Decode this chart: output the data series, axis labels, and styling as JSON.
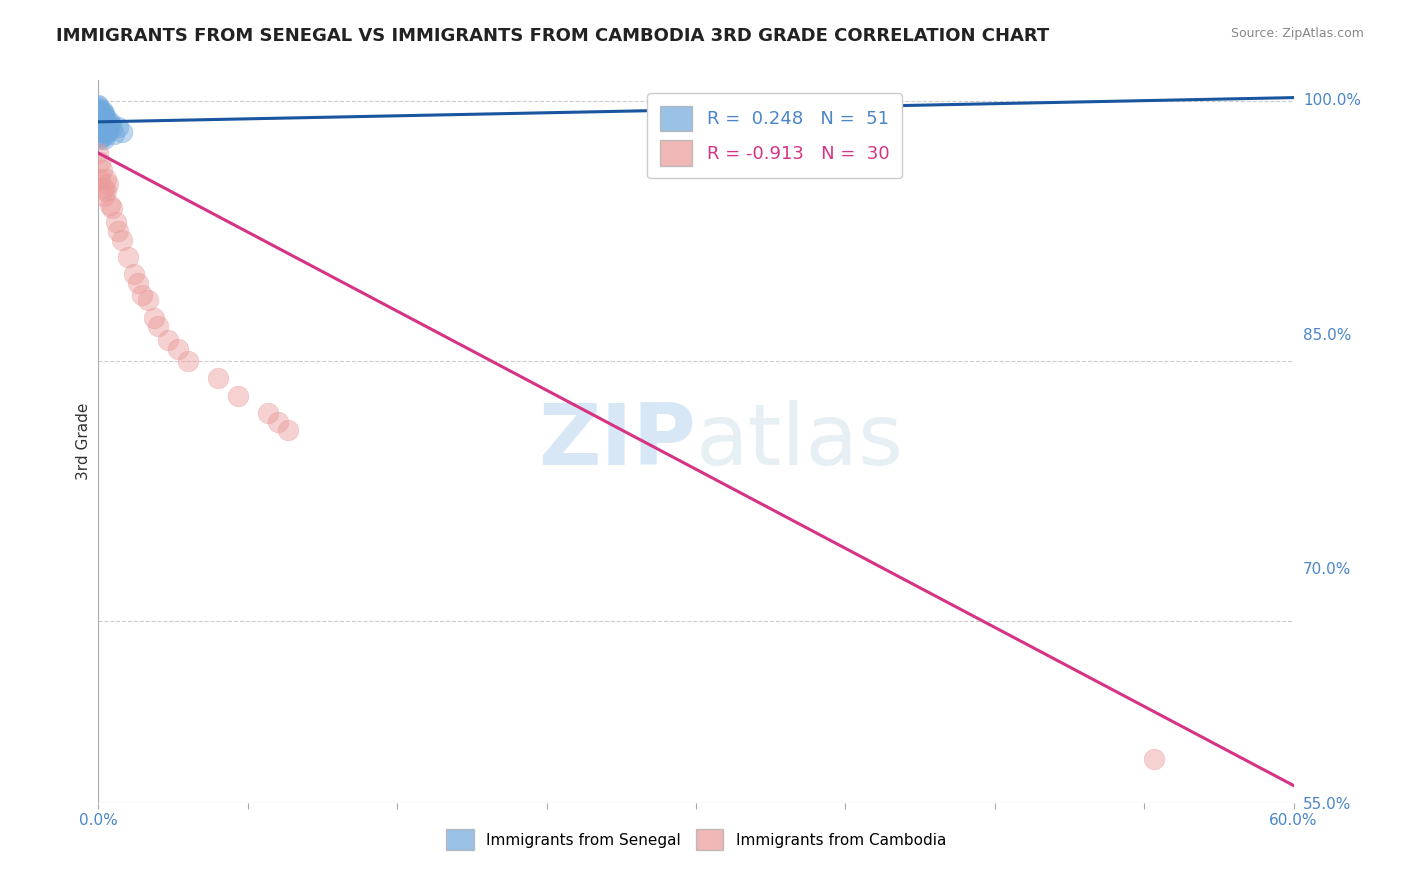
{
  "title": "IMMIGRANTS FROM SENEGAL VS IMMIGRANTS FROM CAMBODIA 3RD GRADE CORRELATION CHART",
  "source": "Source: ZipAtlas.com",
  "ylabel": "3rd Grade",
  "xlim": [
    0.0,
    0.6
  ],
  "ylim": [
    0.595,
    1.012
  ],
  "yticks_right": [
    1.0,
    0.85,
    0.7,
    0.55
  ],
  "ytick_labels_right": [
    "100.0%",
    "85.0%",
    "70.0%",
    "55.0%"
  ],
  "xticks": [
    0.0,
    0.075,
    0.15,
    0.225,
    0.3,
    0.375,
    0.45,
    0.525,
    0.6
  ],
  "xtick_labels": [
    "0.0%",
    "",
    "",
    "",
    "",
    "",
    "",
    "",
    "60.0%"
  ],
  "blue_R": 0.248,
  "blue_N": 51,
  "pink_R": -0.913,
  "pink_N": 30,
  "blue_color": "#6fa8dc",
  "pink_color": "#ea9999",
  "blue_line_color": "#1a56a0",
  "pink_line_color": "#d63384",
  "watermark_zip": "ZIP",
  "watermark_atlas": "atlas",
  "background_color": "#ffffff",
  "grid_color": "#cccccc",
  "title_color": "#222222",
  "blue_scatter_x": [
    0.0,
    0.001,
    0.001,
    0.001,
    0.002,
    0.002,
    0.002,
    0.003,
    0.003,
    0.003,
    0.0,
    0.001,
    0.001,
    0.001,
    0.002,
    0.002,
    0.003,
    0.003,
    0.004,
    0.004,
    0.0,
    0.001,
    0.001,
    0.002,
    0.002,
    0.003,
    0.004,
    0.005,
    0.006,
    0.0,
    0.001,
    0.001,
    0.002,
    0.002,
    0.003,
    0.003,
    0.004,
    0.005,
    0.006,
    0.007,
    0.0,
    0.001,
    0.001,
    0.002,
    0.002,
    0.003,
    0.003,
    0.004,
    0.008,
    0.01,
    0.012
  ],
  "blue_scatter_y": [
    0.99,
    0.992,
    0.985,
    0.978,
    0.995,
    0.988,
    0.98,
    0.992,
    0.985,
    0.978,
    0.998,
    0.993,
    0.986,
    0.979,
    0.99,
    0.983,
    0.993,
    0.986,
    0.99,
    0.983,
    0.995,
    0.992,
    0.984,
    0.991,
    0.984,
    0.988,
    0.985,
    0.982,
    0.987,
    0.997,
    0.994,
    0.987,
    0.992,
    0.985,
    0.989,
    0.982,
    0.986,
    0.983,
    0.988,
    0.985,
    0.996,
    0.993,
    0.986,
    0.99,
    0.983,
    0.987,
    0.98,
    0.984,
    0.981,
    0.985,
    0.982
  ],
  "pink_scatter_x": [
    0.0,
    0.001,
    0.001,
    0.002,
    0.003,
    0.003,
    0.004,
    0.004,
    0.005,
    0.006,
    0.007,
    0.009,
    0.01,
    0.012,
    0.015,
    0.018,
    0.02,
    0.022,
    0.025,
    0.028,
    0.03,
    0.035,
    0.04,
    0.045,
    0.06,
    0.07,
    0.085,
    0.09,
    0.095,
    0.53
  ],
  "pink_scatter_y": [
    0.97,
    0.965,
    0.955,
    0.96,
    0.95,
    0.945,
    0.955,
    0.948,
    0.952,
    0.94,
    0.938,
    0.93,
    0.925,
    0.92,
    0.91,
    0.9,
    0.895,
    0.888,
    0.885,
    0.875,
    0.87,
    0.862,
    0.857,
    0.85,
    0.84,
    0.83,
    0.82,
    0.815,
    0.81,
    0.62
  ],
  "blue_line_x": [
    0.0,
    0.6
  ],
  "blue_line_y": [
    0.988,
    1.002
  ],
  "pink_line_x": [
    0.0,
    0.6
  ],
  "pink_line_y": [
    0.97,
    0.605
  ]
}
